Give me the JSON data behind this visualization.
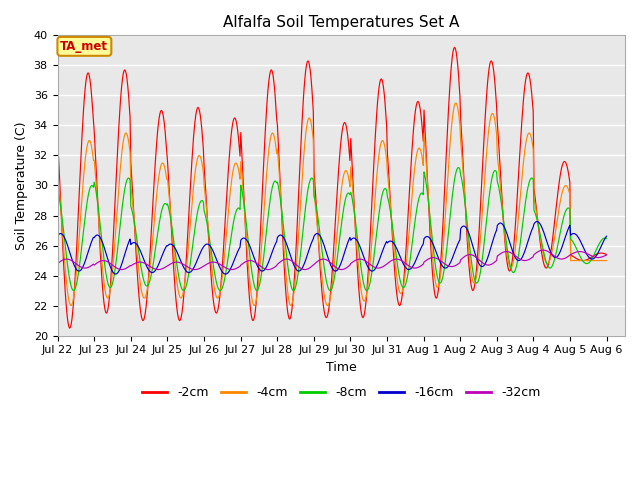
{
  "title": "Alfalfa Soil Temperatures Set A",
  "xlabel": "Time",
  "ylabel": "Soil Temperature (C)",
  "ylim": [
    20,
    40
  ],
  "xtick_labels": [
    "Jul 22",
    "Jul 23",
    "Jul 24",
    "Jul 25",
    "Jul 26",
    "Jul 27",
    "Jul 28",
    "Jul 29",
    "Jul 30",
    "Jul 31",
    "Aug 1",
    "Aug 2",
    "Aug 3",
    "Aug 4",
    "Aug 5",
    "Aug 6"
  ],
  "colors": {
    "-2cm": "#ff0000",
    "-4cm": "#ff8800",
    "-8cm": "#00cc00",
    "-16cm": "#0000cc",
    "-32cm": "#bb00bb"
  },
  "legend_label": "TA_met",
  "legend_box_facecolor": "#ffff99",
  "legend_box_edgecolor": "#cc8800",
  "bg_color": "#e8e8e8",
  "grid_color": "#ffffff",
  "daily_max_2cm": [
    37.5,
    37.7,
    35.0,
    35.2,
    34.5,
    37.7,
    38.3,
    34.2,
    37.1,
    35.6,
    39.2,
    38.3,
    37.5,
    31.6,
    25.5
  ],
  "daily_min_2cm": [
    20.5,
    21.5,
    21.0,
    21.0,
    21.5,
    21.0,
    21.1,
    21.2,
    21.2,
    22.0,
    22.5,
    23.0,
    24.3,
    24.5,
    25.0
  ],
  "daily_max_4cm": [
    33.0,
    33.5,
    31.5,
    32.0,
    31.5,
    33.5,
    34.5,
    31.0,
    33.0,
    32.5,
    35.5,
    34.8,
    33.5,
    30.0,
    25.0
  ],
  "daily_min_4cm": [
    22.0,
    22.5,
    22.5,
    22.5,
    22.5,
    22.0,
    22.0,
    22.0,
    22.3,
    22.8,
    23.2,
    23.5,
    24.5,
    24.8,
    25.0
  ],
  "daily_max_8cm": [
    30.0,
    30.5,
    28.8,
    29.0,
    28.5,
    30.3,
    30.5,
    29.5,
    29.8,
    29.5,
    31.2,
    31.0,
    30.5,
    28.5,
    26.5
  ],
  "daily_min_8cm": [
    23.0,
    23.2,
    23.3,
    23.0,
    23.0,
    23.0,
    23.0,
    23.0,
    23.0,
    23.2,
    23.5,
    23.5,
    24.2,
    24.5,
    24.8
  ],
  "daily_max_16cm": [
    26.8,
    26.7,
    26.2,
    26.1,
    26.1,
    26.5,
    26.7,
    26.8,
    26.5,
    26.3,
    26.6,
    27.3,
    27.5,
    27.6,
    26.8
  ],
  "daily_min_16cm": [
    24.3,
    24.1,
    24.2,
    24.2,
    24.1,
    24.3,
    24.3,
    24.3,
    24.3,
    24.4,
    24.5,
    24.6,
    25.0,
    25.2,
    25.1
  ],
  "daily_max_32cm": [
    25.1,
    25.0,
    24.9,
    24.9,
    24.9,
    25.0,
    25.1,
    25.1,
    25.1,
    25.1,
    25.2,
    25.4,
    25.6,
    25.7,
    25.6
  ],
  "daily_min_32cm": [
    24.5,
    24.4,
    24.4,
    24.4,
    24.4,
    24.4,
    24.4,
    24.4,
    24.5,
    24.5,
    24.6,
    24.7,
    25.0,
    25.1,
    25.2
  ],
  "peak_hour_2cm": 14.0,
  "peak_hour_4cm": 14.8,
  "peak_hour_8cm": 16.5,
  "peak_hour_16cm": 20.0,
  "peak_hour_32cm": 24.0,
  "pts_per_day": 48
}
